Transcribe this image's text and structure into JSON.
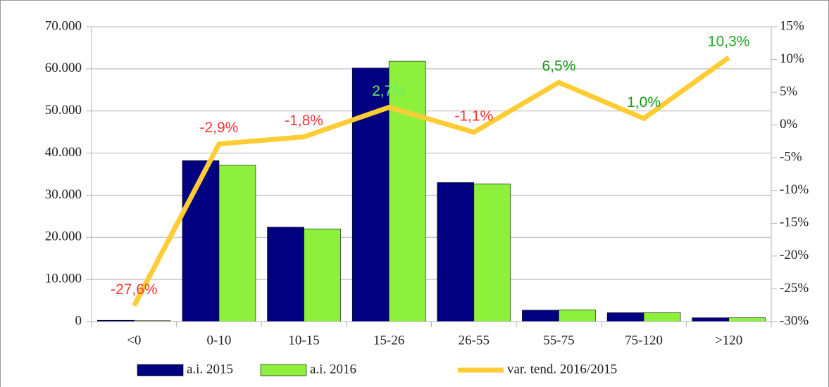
{
  "chart_data": {
    "type": "bar-line",
    "categories": [
      "<0",
      "0-10",
      "10-15",
      "15-26",
      "26-55",
      "55-75",
      "75-120",
      ">120"
    ],
    "series": [
      {
        "name": "a.i. 2015",
        "type": "bar",
        "color": "#000080",
        "values": [
          300,
          38200,
          22400,
          60200,
          33000,
          2700,
          2100,
          900
        ]
      },
      {
        "name": "a.i. 2016",
        "type": "bar",
        "color": "#8cf03c",
        "values": [
          200,
          37100,
          22000,
          61800,
          32700,
          2800,
          2100,
          900
        ]
      },
      {
        "name": "var. tend. 2016/2015",
        "type": "line",
        "axis": "y2",
        "color": "#ffcc33",
        "values": [
          -27.6,
          -2.9,
          -1.8,
          2.7,
          -1.1,
          6.5,
          1.0,
          10.3
        ],
        "value_labels": [
          "-27,6%",
          "-2,9%",
          "-1,8%",
          "2,7%",
          "-1,1%",
          "6,5%",
          "1,0%",
          "10,3%"
        ],
        "value_label_colors": [
          "#ff3333",
          "#ff3333",
          "#ff3333",
          "#66ee66",
          "#ff3333",
          "#119911",
          "#119911",
          "#22aa22"
        ]
      }
    ],
    "ylim": [
      0,
      70000
    ],
    "yticks": [
      0,
      {
        "value": 10000,
        "label": "10.000"
      },
      {
        "value": 20000,
        "label": "20.000"
      },
      {
        "value": 30000,
        "label": "30.000"
      },
      {
        "value": 40000,
        "label": "40.000"
      },
      {
        "value": 50000,
        "label": "50.000"
      },
      {
        "value": 60000,
        "label": "60.000"
      },
      {
        "value": 70000,
        "label": "70.000"
      }
    ],
    "y2lim": [
      -30,
      15
    ],
    "y2ticks": [
      {
        "value": -30,
        "label": "-30%"
      },
      {
        "value": -25,
        "label": "-25%"
      },
      {
        "value": -20,
        "label": "-20%"
      },
      {
        "value": -15,
        "label": "-15%"
      },
      {
        "value": -10,
        "label": "-10%"
      },
      {
        "value": -5,
        "label": "-5%"
      },
      {
        "value": 0,
        "label": "0%"
      },
      {
        "value": 5,
        "label": "5%"
      },
      {
        "value": 10,
        "label": "10%"
      },
      {
        "value": 15,
        "label": "15%"
      }
    ],
    "grid": true,
    "legend": "bottom"
  }
}
